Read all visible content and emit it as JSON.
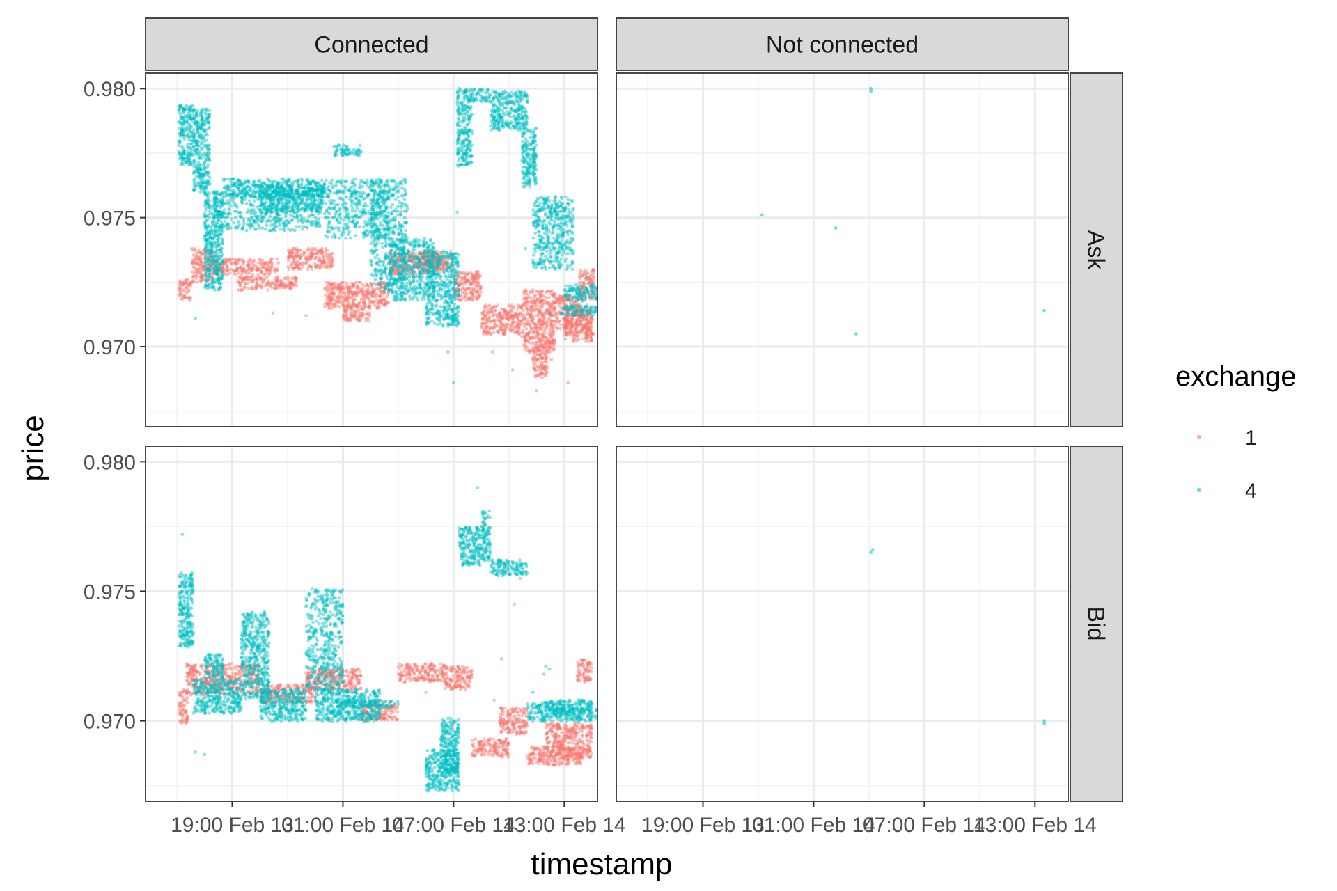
{
  "chart_data": {
    "type": "scatter",
    "facets": {
      "columns": [
        "Connected",
        "Not connected"
      ],
      "rows": [
        "Ask",
        "Bid"
      ]
    },
    "xlabel": "timestamp",
    "ylabel": "price",
    "x_tick_labels": [
      "19:00 Feb 13",
      "01:00 Feb 14",
      "07:00 Feb 14",
      "13:00 Feb 14"
    ],
    "x_tick_hours": [
      19,
      25,
      31,
      37
    ],
    "xlim_hours": [
      14.3,
      38.8
    ],
    "y_tick_values": [
      0.97,
      0.975,
      0.98
    ],
    "y_tick_labels": [
      "0.970",
      "0.975",
      "0.980"
    ],
    "ylim": [
      0.9669,
      0.9806
    ],
    "grid": true,
    "legend": {
      "title": "exchange",
      "position": "right",
      "entries": [
        {
          "label": "1",
          "color": "#F8766D"
        },
        {
          "label": "4",
          "color": "#00BFC4"
        }
      ]
    },
    "series_note": "x values are hours after 00:00 Feb 13",
    "series": [
      {
        "name": "1",
        "color": "#F8766D",
        "panels": {
          "Connected|Ask": {
            "bands": [
              [
                16.1,
                16.8,
                0.9718,
                0.9726
              ],
              [
                16.8,
                18.0,
                0.9725,
                0.9738
              ],
              [
                18.0,
                21.5,
                0.9728,
                0.9734
              ],
              [
                19.3,
                22.5,
                0.9722,
                0.9727
              ],
              [
                22.0,
                24.5,
                0.973,
                0.9738
              ],
              [
                24.0,
                27.5,
                0.9715,
                0.9725
              ],
              [
                25.0,
                26.5,
                0.971,
                0.9716
              ],
              [
                27.5,
                30.3,
                0.9728,
                0.9737
              ],
              [
                29.0,
                31.0,
                0.973,
                0.9737
              ],
              [
                31.0,
                32.5,
                0.9718,
                0.9729
              ],
              [
                32.5,
                34.8,
                0.9705,
                0.9716
              ],
              [
                34.8,
                36.5,
                0.9698,
                0.9722
              ],
              [
                35.3,
                36.1,
                0.9688,
                0.97
              ],
              [
                36.5,
                38.0,
                0.9707,
                0.972
              ],
              [
                37.0,
                38.5,
                0.9702,
                0.9715
              ],
              [
                37.8,
                38.6,
                0.9718,
                0.973
              ],
              [
                38.0,
                38.6,
                0.9705,
                0.9712
              ]
            ],
            "points": [
              [
                35.5,
                0.9683
              ],
              [
                37.2,
                0.9686
              ],
              [
                34.7,
                0.9704
              ],
              [
                33.1,
                0.9698
              ],
              [
                21.2,
                0.9713
              ],
              [
                23.0,
                0.9712
              ],
              [
                36.3,
                0.9695
              ],
              [
                34.2,
                0.9691
              ]
            ]
          },
          "Connected|Bid": {
            "bands": [
              [
                16.1,
                16.6,
                0.9699,
                0.9712
              ],
              [
                16.5,
                20.5,
                0.971,
                0.9722
              ],
              [
                20.5,
                23.5,
                0.9707,
                0.9714
              ],
              [
                23.0,
                26.0,
                0.9712,
                0.972
              ],
              [
                26.0,
                28.0,
                0.97,
                0.9707
              ],
              [
                28.0,
                30.5,
                0.9715,
                0.9722
              ],
              [
                30.5,
                32.0,
                0.9712,
                0.9721
              ],
              [
                32.0,
                34.0,
                0.9686,
                0.9693
              ],
              [
                33.5,
                35.0,
                0.9695,
                0.9705
              ],
              [
                35.0,
                38.0,
                0.9683,
                0.969
              ],
              [
                36.0,
                38.5,
                0.9686,
                0.9699
              ],
              [
                37.7,
                38.5,
                0.9715,
                0.9724
              ]
            ],
            "points": [
              [
                34.3,
                0.9745
              ],
              [
                34.6,
                0.9755
              ],
              [
                33.6,
                0.9724
              ],
              [
                35.9,
                0.9718
              ],
              [
                29.5,
                0.9711
              ],
              [
                36.8,
                0.9704
              ],
              [
                33.2,
                0.9708
              ]
            ]
          }
        }
      },
      {
        "name": "4",
        "color": "#00BFC4",
        "panels": {
          "Connected|Ask": {
            "bands": [
              [
                16.1,
                16.9,
                0.977,
                0.9794
              ],
              [
                16.9,
                17.8,
                0.976,
                0.9792
              ],
              [
                17.5,
                18.5,
                0.9722,
                0.976
              ],
              [
                18.0,
                23.8,
                0.9745,
                0.976
              ],
              [
                18.5,
                24.0,
                0.9758,
                0.9765
              ],
              [
                20.5,
                24.0,
                0.9752,
                0.9762
              ],
              [
                24.0,
                27.5,
                0.9742,
                0.9765
              ],
              [
                24.5,
                26.0,
                0.9774,
                0.9778
              ],
              [
                26.5,
                28.5,
                0.9722,
                0.9765
              ],
              [
                27.5,
                30.0,
                0.9718,
                0.9742
              ],
              [
                29.5,
                31.3,
                0.9708,
                0.9737
              ],
              [
                31.2,
                33.0,
                0.9795,
                0.98
              ],
              [
                31.2,
                32.0,
                0.977,
                0.9795
              ],
              [
                33.0,
                35.0,
                0.9784,
                0.9799
              ],
              [
                34.7,
                35.5,
                0.9762,
                0.9785
              ],
              [
                35.3,
                37.5,
                0.973,
                0.9758
              ],
              [
                36.8,
                38.8,
                0.9712,
                0.9716
              ],
              [
                37.0,
                38.8,
                0.9718,
                0.9724
              ]
            ],
            "points": [
              [
                31.2,
                0.9752
              ],
              [
                30.7,
                0.9698
              ],
              [
                31.0,
                0.9686
              ],
              [
                34.9,
                0.9738
              ],
              [
                17.0,
                0.9711
              ],
              [
                36.2,
                0.9713
              ],
              [
                38.2,
                0.9727
              ]
            ]
          },
          "Connected|Bid": {
            "bands": [
              [
                16.1,
                16.9,
                0.9728,
                0.9757
              ],
              [
                16.9,
                19.5,
                0.9703,
                0.9716
              ],
              [
                17.5,
                18.5,
                0.9716,
                0.9726
              ],
              [
                19.5,
                21.0,
                0.9708,
                0.9742
              ],
              [
                20.5,
                23.0,
                0.97,
                0.9712
              ],
              [
                23.0,
                25.0,
                0.9712,
                0.9751
              ],
              [
                23.5,
                27.0,
                0.97,
                0.9712
              ],
              [
                24.5,
                28.0,
                0.9705,
                0.9708
              ],
              [
                29.5,
                31.3,
                0.9673,
                0.9689
              ],
              [
                30.3,
                31.3,
                0.968,
                0.9701
              ],
              [
                31.3,
                32.5,
                0.976,
                0.9775
              ],
              [
                32.5,
                33.0,
                0.9762,
                0.9781
              ],
              [
                33.0,
                35.0,
                0.9756,
                0.9762
              ],
              [
                35.0,
                37.0,
                0.97,
                0.9707
              ],
              [
                36.0,
                38.5,
                0.9702,
                0.9708
              ],
              [
                37.0,
                38.8,
                0.97,
                0.9705
              ]
            ],
            "points": [
              [
                16.3,
                0.9772
              ],
              [
                17.0,
                0.9688
              ],
              [
                17.5,
                0.9687
              ],
              [
                32.3,
                0.979
              ],
              [
                36.0,
                0.9721
              ],
              [
                36.2,
                0.972
              ],
              [
                30.2,
                0.9673
              ],
              [
                35.3,
                0.9711
              ]
            ]
          }
        }
      }
    ],
    "not_connected_points": [
      {
        "panel": "Not connected|Ask",
        "exchange": "4",
        "x": 22.2,
        "y": 0.9751
      },
      {
        "panel": "Not connected|Ask",
        "exchange": "4",
        "x": 26.2,
        "y": 0.9746
      },
      {
        "panel": "Not connected|Ask",
        "exchange": "4",
        "x": 28.1,
        "y": 0.9799
      },
      {
        "panel": "Not connected|Ask",
        "exchange": "4",
        "x": 28.1,
        "y": 0.98
      },
      {
        "panel": "Not connected|Ask",
        "exchange": "4",
        "x": 27.3,
        "y": 0.9705
      },
      {
        "panel": "Not connected|Ask",
        "exchange": "4",
        "x": 37.5,
        "y": 0.9714
      },
      {
        "panel": "Not connected|Bid",
        "exchange": "4",
        "x": 28.1,
        "y": 0.9765
      },
      {
        "panel": "Not connected|Bid",
        "exchange": "4",
        "x": 28.2,
        "y": 0.9766
      },
      {
        "panel": "Not connected|Bid",
        "exchange": "4",
        "x": 37.5,
        "y": 0.97
      },
      {
        "panel": "Not connected|Bid",
        "exchange": "4",
        "x": 37.5,
        "y": 0.9699
      }
    ]
  }
}
